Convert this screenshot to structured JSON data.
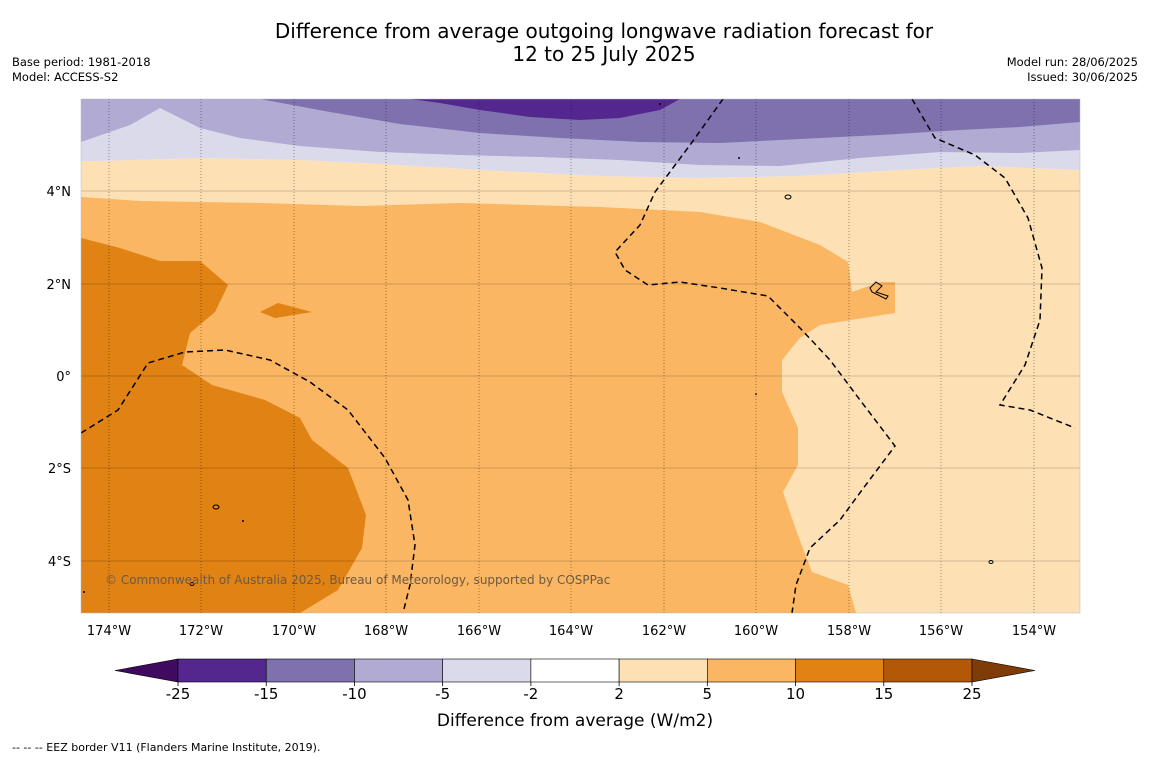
{
  "title": {
    "line1": "Difference from average outgoing longwave radiation forecast for",
    "line2": "12 to 25 July 2025"
  },
  "info_left": {
    "base_period": "Base period: 1981-2018",
    "model": "Model: ACCESS-S2"
  },
  "info_right": {
    "model_run": "Model run: 28/06/2025",
    "issued": "Issued: 30/06/2025"
  },
  "map": {
    "lon_labels": [
      "174°W",
      "172°W",
      "170°W",
      "168°W",
      "166°W",
      "164°W",
      "162°W",
      "160°W",
      "158°W",
      "156°W",
      "154°W"
    ],
    "lat_labels": [
      "4°N",
      "2°N",
      "0°",
      "2°S",
      "4°S"
    ],
    "credit": "© Commonwealth of Australia 2025, Bureau of Meteorology, supported by COSPPac"
  },
  "colorbar": {
    "label": "Difference from average (W/m2)",
    "ticks": [
      "-25",
      "-15",
      "-10",
      "-5",
      "-2",
      "2",
      "5",
      "10",
      "15",
      "25"
    ],
    "colors": [
      "#3f0a5f",
      "#54278f",
      "#7f71ad",
      "#b1aad2",
      "#dadaeb",
      "#ffffff",
      "#fde0b4",
      "#fab662",
      "#e08214",
      "#b35806",
      "#7f3b08"
    ]
  },
  "footnote": "--  --  -- EEZ border V11 (Flanders Marine Institute, 2019)."
}
